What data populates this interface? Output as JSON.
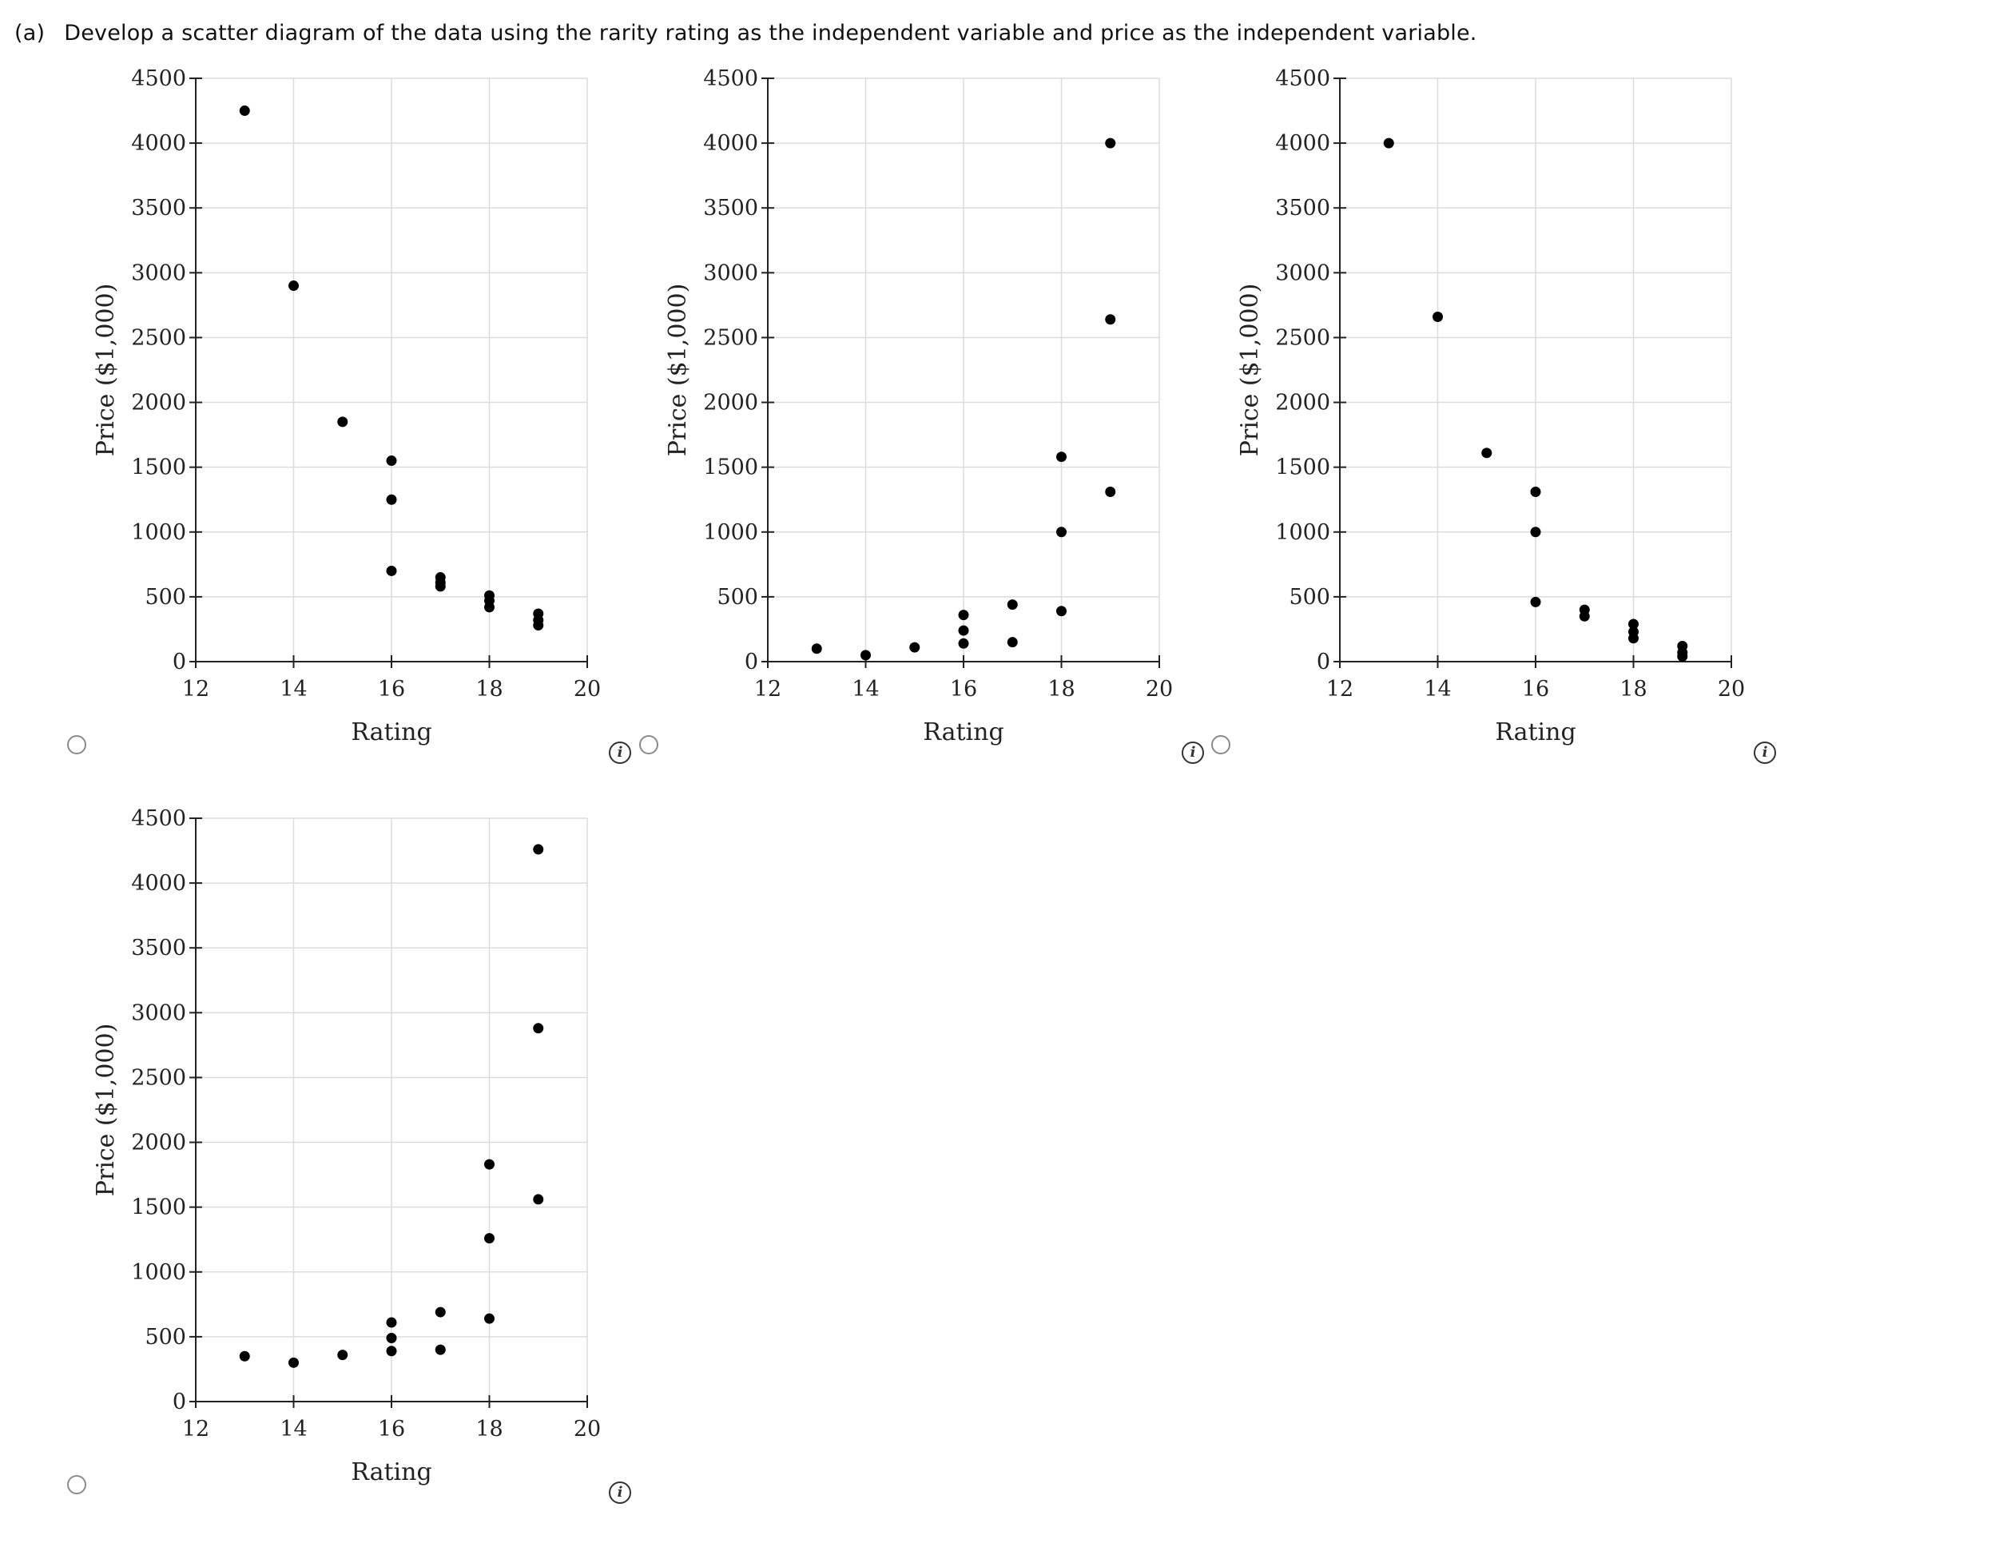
{
  "question": {
    "label": "(a)",
    "text": "Develop a scatter diagram of the data using the rarity rating as the independent variable and price as the independent variable."
  },
  "info_icon_glyph": "i",
  "colors": {
    "point": "#000000",
    "grid": "#dcdcdc",
    "radio_border": "#8a8a8a"
  },
  "chart_data": [
    {
      "type": "scatter",
      "option": 1,
      "selected": false,
      "title": "",
      "xlabel": "Rating",
      "ylabel": "Price ($1,000)",
      "xlim": [
        12,
        20
      ],
      "ylim": [
        0,
        4500
      ],
      "xticks": [
        12,
        14,
        16,
        18,
        20
      ],
      "yticks": [
        0,
        500,
        1000,
        1500,
        2000,
        2500,
        3000,
        3500,
        4000,
        4500
      ],
      "points": [
        [
          13,
          4250
        ],
        [
          14,
          2900
        ],
        [
          15,
          1850
        ],
        [
          16,
          1550
        ],
        [
          16,
          1250
        ],
        [
          16,
          700
        ],
        [
          17,
          650
        ],
        [
          17,
          610
        ],
        [
          17,
          580
        ],
        [
          18,
          510
        ],
        [
          18,
          470
        ],
        [
          18,
          420
        ],
        [
          19,
          370
        ],
        [
          19,
          320
        ],
        [
          19,
          280
        ]
      ]
    },
    {
      "type": "scatter",
      "option": 2,
      "selected": false,
      "title": "",
      "xlabel": "Rating",
      "ylabel": "Price ($1,000)",
      "xlim": [
        12,
        20
      ],
      "ylim": [
        0,
        4500
      ],
      "xticks": [
        12,
        14,
        16,
        18,
        20
      ],
      "yticks": [
        0,
        500,
        1000,
        1500,
        2000,
        2500,
        3000,
        3500,
        4000,
        4500
      ],
      "points": [
        [
          13,
          100
        ],
        [
          14,
          50
        ],
        [
          15,
          110
        ],
        [
          16,
          360
        ],
        [
          16,
          240
        ],
        [
          16,
          140
        ],
        [
          17,
          440
        ],
        [
          17,
          150
        ],
        [
          18,
          1580
        ],
        [
          18,
          1000
        ],
        [
          18,
          390
        ],
        [
          19,
          4000
        ],
        [
          19,
          2640
        ],
        [
          19,
          1310
        ]
      ]
    },
    {
      "type": "scatter",
      "option": 3,
      "selected": false,
      "title": "",
      "xlabel": "Rating",
      "ylabel": "Price ($1,000)",
      "xlim": [
        12,
        20
      ],
      "ylim": [
        0,
        4500
      ],
      "xticks": [
        12,
        14,
        16,
        18,
        20
      ],
      "yticks": [
        0,
        500,
        1000,
        1500,
        2000,
        2500,
        3000,
        3500,
        4000,
        4500
      ],
      "points": [
        [
          13,
          4000
        ],
        [
          14,
          2660
        ],
        [
          15,
          1610
        ],
        [
          16,
          1310
        ],
        [
          16,
          1000
        ],
        [
          16,
          460
        ],
        [
          17,
          400
        ],
        [
          17,
          350
        ],
        [
          18,
          290
        ],
        [
          18,
          230
        ],
        [
          18,
          180
        ],
        [
          19,
          120
        ],
        [
          19,
          70
        ],
        [
          19,
          40
        ]
      ]
    },
    {
      "type": "scatter",
      "option": 4,
      "selected": false,
      "title": "",
      "xlabel": "Rating",
      "ylabel": "Price ($1,000)",
      "xlim": [
        12,
        20
      ],
      "ylim": [
        0,
        4500
      ],
      "xticks": [
        12,
        14,
        16,
        18,
        20
      ],
      "yticks": [
        0,
        500,
        1000,
        1500,
        2000,
        2500,
        3000,
        3500,
        4000,
        4500
      ],
      "points": [
        [
          13,
          350
        ],
        [
          14,
          300
        ],
        [
          15,
          360
        ],
        [
          16,
          610
        ],
        [
          16,
          490
        ],
        [
          16,
          390
        ],
        [
          17,
          690
        ],
        [
          17,
          400
        ],
        [
          18,
          1830
        ],
        [
          18,
          1260
        ],
        [
          18,
          640
        ],
        [
          19,
          4260
        ],
        [
          19,
          2880
        ],
        [
          19,
          1560
        ]
      ]
    }
  ]
}
